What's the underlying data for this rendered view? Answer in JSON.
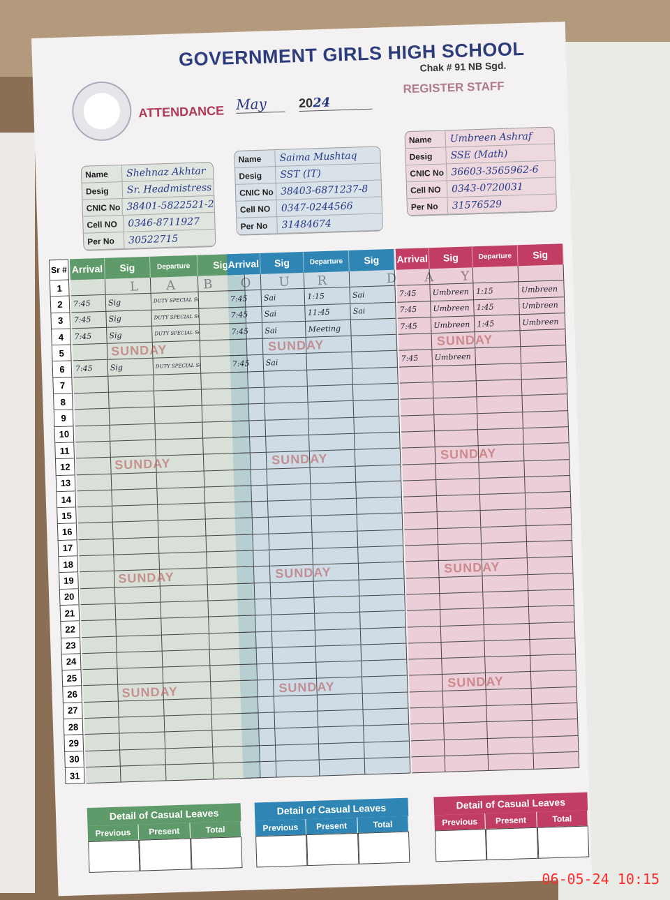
{
  "header": {
    "school": "GOVERNMENT GIRLS HIGH SCHOOL",
    "location": "Chak # 91 NB Sgd.",
    "attendance_label": "ATTENDANCE",
    "month": "May",
    "year_prefix": "20",
    "year_suffix": "24",
    "register": "REGISTER STAFF"
  },
  "card_labels": [
    "Name",
    "Desig",
    "CNIC No",
    "Cell NO",
    "Per No"
  ],
  "staff": [
    {
      "name": "Shehnaz Akhtar",
      "desig": "Sr. Headmistress",
      "cnic": "38401-5822521-2",
      "cell": "0346-8711927",
      "per": "30522715",
      "color": "#5f9a6a"
    },
    {
      "name": "Saima Mushtaq",
      "desig": "SST (IT)",
      "cnic": "38403-6871237-8",
      "cell": "0347-0244566",
      "per": "31484674",
      "color": "#2f86b4"
    },
    {
      "name": "Umbreen Ashraf",
      "desig": "SSE (Math)",
      "cnic": "36603-3565962-6",
      "cell": "0343-0720031",
      "per": "31576529",
      "color": "#c23d63"
    }
  ],
  "table": {
    "sr_header": "Sr #",
    "columns": [
      "Arrival",
      "Sig",
      "Departure",
      "Sig"
    ],
    "days": 31,
    "sunday_label": "SUNDAY",
    "sundays": [
      5,
      12,
      19,
      26
    ],
    "labour_day": "LABOUR DAY",
    "entries": [
      [
        {
          "day": 2,
          "cells": [
            "7:45",
            "Sig",
            "DUTY SPECIAL SQUAD BISE SGD",
            ""
          ]
        },
        {
          "day": 3,
          "cells": [
            "7:45",
            "Sig",
            "DUTY SPECIAL SQUAD BISE SGD",
            ""
          ]
        },
        {
          "day": 4,
          "cells": [
            "7:45",
            "Sig",
            "DUTY SPECIAL SQUAD BISE SGD",
            ""
          ]
        },
        {
          "day": 6,
          "cells": [
            "7:45",
            "Sig",
            "DUTY SPECIAL SQUAD BISE SGD",
            ""
          ]
        }
      ],
      [
        {
          "day": 2,
          "cells": [
            "7:45",
            "Sai",
            "1:15",
            "Sai"
          ]
        },
        {
          "day": 3,
          "cells": [
            "7:45",
            "Sai",
            "11:45",
            "Sai"
          ]
        },
        {
          "day": 4,
          "cells": [
            "7:45",
            "Sai",
            "Meeting",
            ""
          ]
        },
        {
          "day": 6,
          "cells": [
            "7:45",
            "Sai",
            "",
            ""
          ]
        }
      ],
      [
        {
          "day": 2,
          "cells": [
            "7:45",
            "Umbreen",
            "1:15",
            "Umbreen"
          ]
        },
        {
          "day": 3,
          "cells": [
            "7:45",
            "Umbreen",
            "1:45",
            "Umbreen"
          ]
        },
        {
          "day": 4,
          "cells": [
            "7:45",
            "Umbreen",
            "1:45",
            "Umbreen"
          ]
        },
        {
          "day": 6,
          "cells": [
            "7:45",
            "Umbreen",
            "",
            ""
          ]
        }
      ]
    ]
  },
  "leaves": {
    "title": "Detail of Casual Leaves",
    "columns": [
      "Previous",
      "Present",
      "Total"
    ]
  },
  "timestamp": "06-05-24  10:15"
}
